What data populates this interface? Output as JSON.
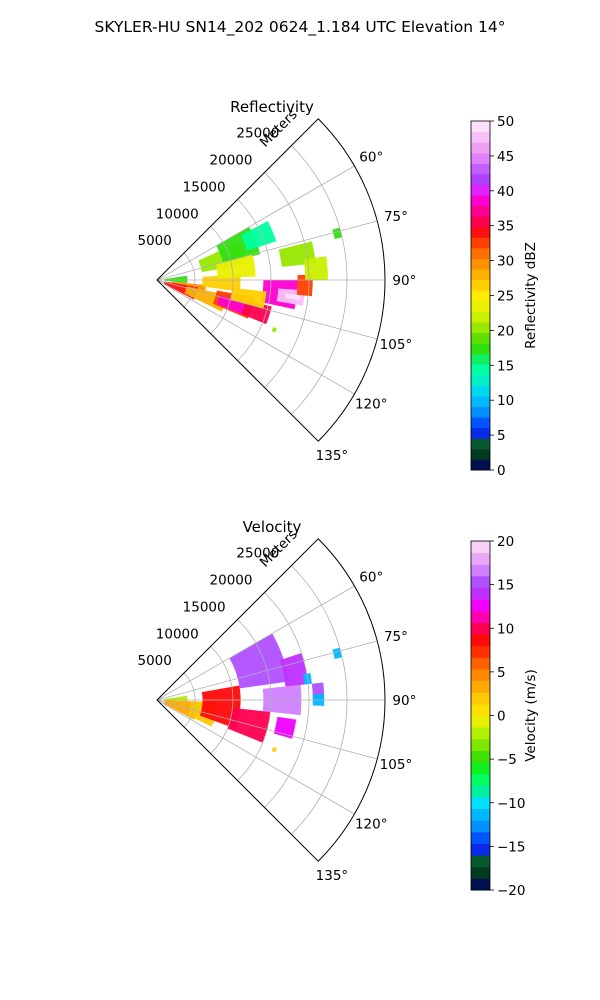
{
  "figure": {
    "suptitle": "SKYLER-HU  SN14_202  0624_1.184 UTC Elevation 14°"
  },
  "chart_data": [
    {
      "type": "heatmap",
      "projection": "polar-sector",
      "title": "Reflectivity",
      "range_axis_label": "Meters",
      "range_ticks": [
        5000,
        10000,
        15000,
        20000,
        25000
      ],
      "range_tick_labels": [
        "5000",
        "10000",
        "15000",
        "20000",
        "25000"
      ],
      "range_max_m": 30000,
      "azimuth_range_deg": [
        45,
        135
      ],
      "azimuth_ticks": [
        60,
        75,
        90,
        105,
        120,
        135
      ],
      "azimuth_tick_labels": [
        "60°",
        "75°",
        "90°",
        "105°",
        "120°",
        "135°"
      ],
      "grid": true,
      "colorbar": {
        "label": "Reflectivity dBZ",
        "vmin": 0,
        "vmax": 50,
        "ticks": [
          0,
          5,
          10,
          15,
          20,
          25,
          30,
          35,
          40,
          45,
          50
        ],
        "tick_labels": [
          "0",
          "5",
          "10",
          "15",
          "20",
          "25",
          "30",
          "35",
          "40",
          "45",
          "50"
        ],
        "colors": [
          "#001050",
          "#003a20",
          "#075a30",
          "#0a2ae8",
          "#0055ff",
          "#0090ff",
          "#00b8ff",
          "#00d8ee",
          "#00f0c8",
          "#00ffa0",
          "#10f060",
          "#30e010",
          "#60e000",
          "#98e800",
          "#c8f000",
          "#e8f000",
          "#ffea00",
          "#ffd000",
          "#ffb000",
          "#ff9000",
          "#ff7000",
          "#ff4000",
          "#ff1010",
          "#ff0050",
          "#ff0090",
          "#ff00d0",
          "#e020ff",
          "#b040ff",
          "#c060ff",
          "#e080ff",
          "#f0a0f0",
          "#f8c0f8",
          "#fde0fd"
        ]
      },
      "cells": [
        {
          "r": [
            2000,
            6500
          ],
          "az": [
            96,
            105
          ],
          "value": 30
        },
        {
          "r": [
            1000,
            5500
          ],
          "az": [
            100,
            118
          ],
          "value": 34
        },
        {
          "r": [
            4000,
            9500
          ],
          "az": [
            102,
            116
          ],
          "value": 28
        },
        {
          "r": [
            8000,
            13000
          ],
          "az": [
            100,
            113
          ],
          "value": 32
        },
        {
          "r": [
            8500,
            12000
          ],
          "az": [
            104,
            112
          ],
          "value": 38
        },
        {
          "r": [
            12000,
            15500
          ],
          "az": [
            103,
            112
          ],
          "value": 36
        },
        {
          "r": [
            14000,
            18500
          ],
          "az": [
            90,
            102
          ],
          "value": 38
        },
        {
          "r": [
            16000,
            19500
          ],
          "az": [
            94,
            100
          ],
          "value": 47
        },
        {
          "r": [
            17000,
            19000
          ],
          "az": [
            96,
            98
          ],
          "value": 50
        },
        {
          "r": [
            18500,
            20500
          ],
          "az": [
            88,
            96
          ],
          "value": 32
        },
        {
          "r": [
            10000,
            14500
          ],
          "az": [
            96,
            105
          ],
          "value": 27
        },
        {
          "r": [
            6000,
            11000
          ],
          "az": [
            86,
            98
          ],
          "value": 26
        },
        {
          "r": [
            6000,
            12000
          ],
          "az": [
            65,
            80
          ],
          "value": 20
        },
        {
          "r": [
            9000,
            14000
          ],
          "az": [
            60,
            76
          ],
          "value": 18
        },
        {
          "r": [
            12500,
            16500
          ],
          "az": [
            62,
            72
          ],
          "value": 15
        },
        {
          "r": [
            8000,
            13000
          ],
          "az": [
            75,
            88
          ],
          "value": 24
        },
        {
          "r": [
            16500,
            21000
          ],
          "az": [
            76,
            84
          ],
          "value": 20
        },
        {
          "r": [
            19500,
            22500
          ],
          "az": [
            82,
            90
          ],
          "value": 22
        },
        {
          "r": [
            1000,
            4000
          ],
          "az": [
            82,
            96
          ],
          "value": 18
        },
        {
          "r": [
            24000,
            25000
          ],
          "az": [
            74,
            77
          ],
          "value": 18
        },
        {
          "r": [
            16500,
            17000
          ],
          "az": [
            112,
            114
          ],
          "value": 20
        }
      ]
    },
    {
      "type": "heatmap",
      "projection": "polar-sector",
      "title": "Velocity",
      "range_axis_label": "Meters",
      "range_ticks": [
        5000,
        10000,
        15000,
        20000,
        25000
      ],
      "range_tick_labels": [
        "5000",
        "10000",
        "15000",
        "20000",
        "25000"
      ],
      "range_max_m": 30000,
      "azimuth_range_deg": [
        45,
        135
      ],
      "azimuth_ticks": [
        60,
        75,
        90,
        105,
        120,
        135
      ],
      "azimuth_tick_labels": [
        "60°",
        "75°",
        "90°",
        "105°",
        "120°",
        "135°"
      ],
      "grid": true,
      "colorbar": {
        "label": "Velocity (m/s)",
        "vmin": -20,
        "vmax": 20,
        "ticks": [
          -20,
          -15,
          -10,
          -5,
          0,
          5,
          10,
          15,
          20
        ],
        "tick_labels": [
          "−20",
          "−15",
          "−10",
          "−5",
          "0",
          "5",
          "10",
          "15",
          "20"
        ],
        "colors": [
          "#001050",
          "#003a20",
          "#075a30",
          "#0a2ae8",
          "#0055ff",
          "#0090ff",
          "#00b8ff",
          "#00e0ff",
          "#00f0a0",
          "#00ff60",
          "#10f020",
          "#40e000",
          "#80e800",
          "#b0f000",
          "#e8f000",
          "#ffe000",
          "#ffc800",
          "#ffa800",
          "#ff8800",
          "#ff6000",
          "#ff3000",
          "#ff0808",
          "#ff0050",
          "#ff00b0",
          "#f000ff",
          "#c030ff",
          "#b050ff",
          "#d080ff",
          "#e8a8f8",
          "#f8d0f8"
        ]
      },
      "cells": [
        {
          "r": [
            1000,
            5500
          ],
          "az": [
            92,
            118
          ],
          "value": 3
        },
        {
          "r": [
            4500,
            8000
          ],
          "az": [
            92,
            116
          ],
          "value": 2
        },
        {
          "r": [
            1000,
            4000
          ],
          "az": [
            82,
            92
          ],
          "value": -2
        },
        {
          "r": [
            6000,
            11000
          ],
          "az": [
            80,
            110
          ],
          "value": 9
        },
        {
          "r": [
            10000,
            15000
          ],
          "az": [
            96,
            112
          ],
          "value": 10
        },
        {
          "r": [
            11000,
            17500
          ],
          "az": [
            60,
            82
          ],
          "value": 15
        },
        {
          "r": [
            14000,
            19000
          ],
          "az": [
            84,
            96
          ],
          "value": 16
        },
        {
          "r": [
            16000,
            18500
          ],
          "az": [
            98,
            106
          ],
          "value": 13
        },
        {
          "r": [
            17000,
            20000
          ],
          "az": [
            72,
            84
          ],
          "value": 14
        },
        {
          "r": [
            20500,
            22000
          ],
          "az": [
            84,
            90
          ],
          "value": 15
        },
        {
          "r": [
            19500,
            20500
          ],
          "az": [
            80,
            84
          ],
          "value": -12
        },
        {
          "r": [
            20500,
            22000
          ],
          "az": [
            88,
            92
          ],
          "value": -11
        },
        {
          "r": [
            24000,
            25000
          ],
          "az": [
            74,
            77
          ],
          "value": -12
        },
        {
          "r": [
            16500,
            17000
          ],
          "az": [
            112,
            114
          ],
          "value": 2
        }
      ]
    }
  ]
}
